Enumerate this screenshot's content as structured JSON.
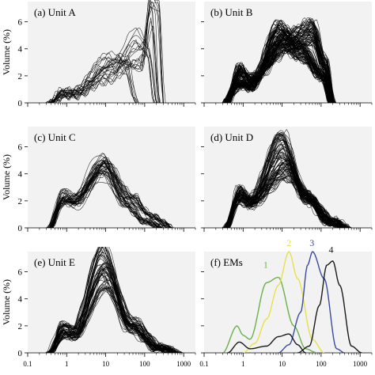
{
  "figure": {
    "ylabel": "Volume (%)",
    "x_ticks": [
      "0.1",
      "1",
      "10",
      "100",
      "1000"
    ],
    "y_ticks_top": [
      "0",
      "2",
      "4",
      "6"
    ],
    "y_ticks_bottom": [
      "0",
      "2",
      "4",
      "6"
    ]
  },
  "chart_data": [
    {
      "type": "line",
      "panel": "a",
      "title": "(a) Unit A",
      "x_scale": "log",
      "xlim": [
        0.1,
        2000
      ],
      "ylim": [
        0,
        7.5
      ],
      "line_color": "#000000",
      "curve_count_estimate": 25,
      "series": [
        {
          "x": [
            0.35,
            0.8,
            1.5,
            10,
            30,
            60
          ],
          "y": [
            0,
            0.9,
            0.9,
            3.3,
            3.1,
            0
          ]
        },
        {
          "x": [
            0.35,
            0.8,
            1.5,
            20,
            80,
            150,
            200,
            300
          ],
          "y": [
            0,
            0.8,
            0.8,
            3.0,
            2.5,
            7.5,
            7.0,
            0
          ]
        },
        {
          "x": [
            0.35,
            0.8,
            1.5,
            10,
            90,
            150,
            220
          ],
          "y": [
            0,
            0.5,
            0.5,
            1.8,
            4.0,
            7.2,
            0
          ]
        },
        {
          "x": [
            0.35,
            0.8,
            1.5,
            15,
            60,
            130,
            200
          ],
          "y": [
            0,
            0.6,
            0.6,
            2.5,
            5.0,
            4.0,
            0
          ]
        }
      ]
    },
    {
      "type": "line",
      "panel": "b",
      "title": "(b) Unit B",
      "x_scale": "log",
      "xlim": [
        0.1,
        2000
      ],
      "ylim": [
        0,
        7.5
      ],
      "line_color": "#000000",
      "curve_count_estimate": 120,
      "series": [
        {
          "x": [
            0.35,
            0.8,
            1.5,
            8,
            30,
            120,
            180
          ],
          "y": [
            0,
            1.5,
            1.2,
            5.4,
            4.0,
            2.0,
            0
          ]
        },
        {
          "x": [
            0.35,
            0.8,
            1.5,
            15,
            60,
            120,
            200
          ],
          "y": [
            0,
            2.5,
            1.8,
            4.8,
            5.5,
            3.0,
            0
          ]
        }
      ]
    },
    {
      "type": "line",
      "panel": "c",
      "title": "(c) Unit C",
      "x_scale": "log",
      "xlim": [
        0.1,
        2000
      ],
      "ylim": [
        0,
        7.5
      ],
      "line_color": "#000000",
      "curve_count_estimate": 40,
      "series": [
        {
          "x": [
            0.35,
            0.8,
            1.5,
            8,
            30,
            100,
            300
          ],
          "y": [
            0,
            2.6,
            2.3,
            5.0,
            2.0,
            0.5,
            0
          ]
        },
        {
          "x": [
            0.35,
            0.8,
            1.5,
            10,
            40,
            150,
            500
          ],
          "y": [
            0,
            2.0,
            1.8,
            4.5,
            2.3,
            0.8,
            0
          ]
        }
      ]
    },
    {
      "type": "line",
      "panel": "d",
      "title": "(d) Unit D",
      "x_scale": "log",
      "xlim": [
        0.1,
        2000
      ],
      "ylim": [
        0,
        7.5
      ],
      "line_color": "#000000",
      "curve_count_estimate": 80,
      "series": [
        {
          "x": [
            0.35,
            0.8,
            1.5,
            10,
            40,
            150,
            400
          ],
          "y": [
            0,
            2.8,
            2.1,
            6.5,
            2.5,
            0.4,
            0
          ]
        },
        {
          "x": [
            0.35,
            0.8,
            1.5,
            12,
            50,
            200,
            500
          ],
          "y": [
            0,
            2.4,
            1.9,
            4.5,
            2.2,
            0.6,
            0
          ]
        }
      ]
    },
    {
      "type": "line",
      "panel": "e",
      "title": "(e) Unit E",
      "x_scale": "log",
      "xlim": [
        0.1,
        2000
      ],
      "ylim": [
        0,
        7.5
      ],
      "line_color": "#000000",
      "curve_count_estimate": 60,
      "series": [
        {
          "x": [
            0.35,
            0.8,
            1.5,
            8,
            40,
            200,
            600
          ],
          "y": [
            0,
            2.0,
            1.7,
            7.3,
            2.0,
            0.3,
            0
          ]
        },
        {
          "x": [
            0.35,
            0.8,
            1.5,
            10,
            50,
            250,
            800
          ],
          "y": [
            0,
            1.5,
            1.3,
            6.0,
            2.3,
            0.5,
            0
          ]
        }
      ]
    },
    {
      "type": "line",
      "panel": "f",
      "title": "(f) EMs",
      "x_scale": "log",
      "xlim": [
        0.1,
        2000
      ],
      "ylim": [
        0,
        7.5
      ],
      "series": [
        {
          "name": "1",
          "color": "#6ab04c",
          "x": [
            0.3,
            0.7,
            1.0,
            1.5,
            4,
            8,
            20,
            40,
            80
          ],
          "y": [
            0,
            2.0,
            1.3,
            1.0,
            5.2,
            5.6,
            2.0,
            0.3,
            0
          ]
        },
        {
          "name": "2",
          "color": "#e8e04a",
          "x": [
            1,
            2,
            4,
            8,
            15,
            25,
            60,
            120
          ],
          "y": [
            0,
            0.7,
            2.5,
            5.0,
            7.5,
            5.5,
            1.0,
            0
          ]
        },
        {
          "name": "3",
          "color": "#3b4aa0",
          "x": [
            8,
            15,
            30,
            45,
            60,
            120,
            250,
            400
          ],
          "y": [
            0,
            0.6,
            3.0,
            6.5,
            7.5,
            5.5,
            0.3,
            0
          ]
        },
        {
          "name": "4",
          "color": "#1a1a1a",
          "x": [
            25,
            50,
            90,
            140,
            200,
            300,
            600,
            1100
          ],
          "y": [
            0,
            0.5,
            3.5,
            6.5,
            6.8,
            5.0,
            0.5,
            0
          ]
        },
        {
          "color": "#1a1a1a",
          "x": [
            0.4,
            0.8,
            1.5,
            4,
            8,
            15,
            25,
            40
          ],
          "y": [
            0,
            0.8,
            0.3,
            0.5,
            1.2,
            1.4,
            0.6,
            0
          ]
        }
      ],
      "labels": [
        {
          "text": "1",
          "x": 3.8,
          "y": 6.3,
          "color": "#6ab04c"
        },
        {
          "text": "2",
          "x": 15,
          "y": 7.9,
          "color": "#e8e04a"
        },
        {
          "text": "3",
          "x": 58,
          "y": 7.9,
          "color": "#3b4aa0"
        },
        {
          "text": "4",
          "x": 180,
          "y": 7.4,
          "color": "#1a1a1a"
        }
      ]
    }
  ]
}
